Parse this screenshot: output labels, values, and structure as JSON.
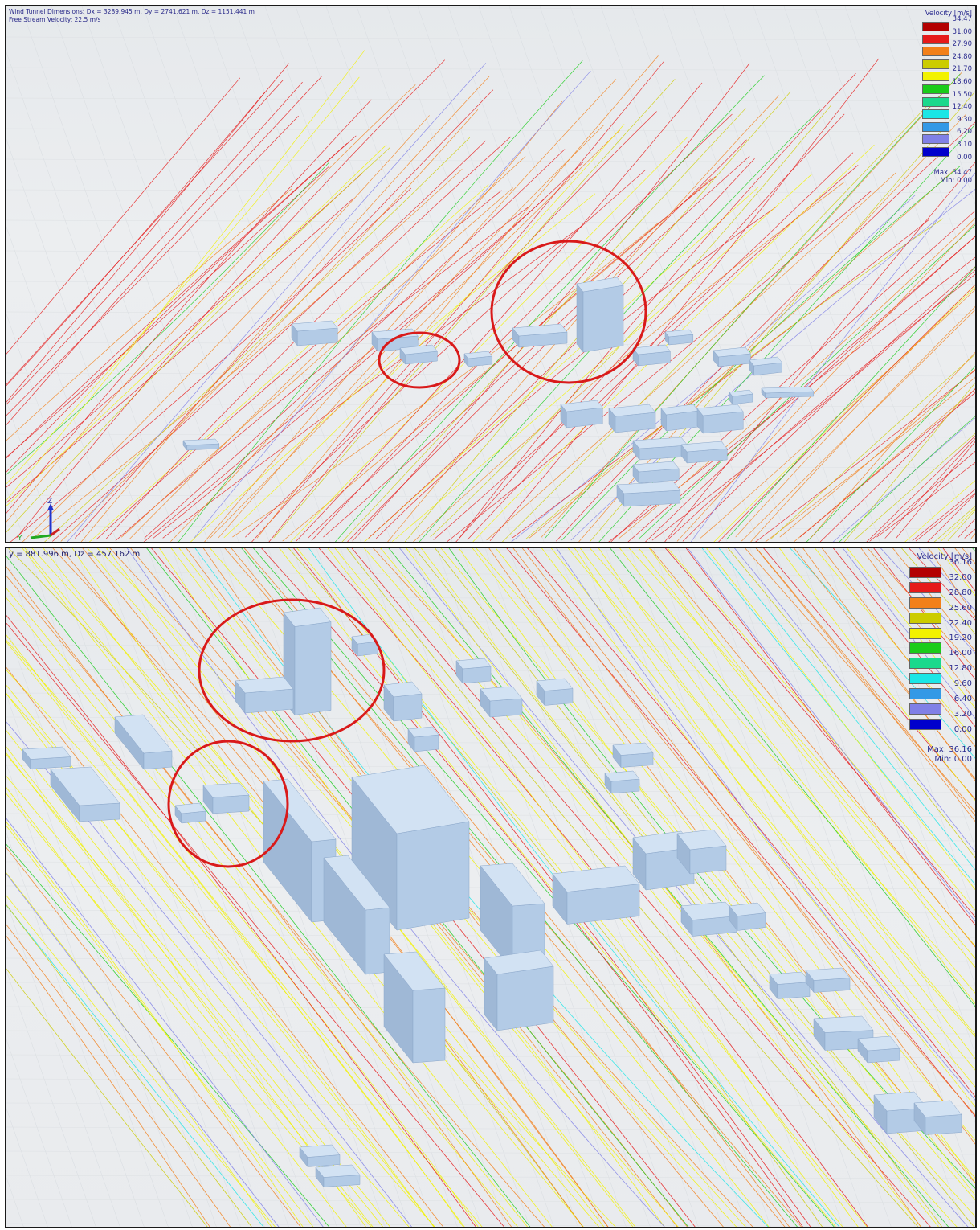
{
  "top_view": {
    "info_line1": "Wind Tunnel Dimensions: Dx = 3289.945 m, Dy = 2741.621 m, Dz = 1151.441 m",
    "info_line2": "Free Stream Velocity: 22.5 m/s",
    "legend": {
      "title": "Velocity [m/s]",
      "ticks": [
        "34.47",
        "31.00",
        "27.90",
        "24.80",
        "21.70",
        "18.60",
        "15.50",
        "12.40",
        "9.30",
        "6.20",
        "3.10",
        "0.00"
      ],
      "max_label": "Max:",
      "max_value": "34.47",
      "min_label": "Min:",
      "min_value": "0.00"
    },
    "axis": {
      "z": "Z",
      "y": "Y",
      "x": "X"
    }
  },
  "bottom_view": {
    "info_line1": "y = 881.996 m, Dz = 457.162 m",
    "legend": {
      "title": "Velocity [m/s]",
      "ticks": [
        "36.16",
        "32.00",
        "28.80",
        "25.60",
        "22.40",
        "19.20",
        "16.00",
        "12.80",
        "9.60",
        "6.40",
        "3.20",
        "0.00"
      ],
      "max_label": "Max:",
      "max_value": "36.16",
      "min_label": "Min:",
      "min_value": "0.00"
    }
  },
  "colors": {
    "scale": [
      "#b30000",
      "#e61a1a",
      "#f2801a",
      "#cccc00",
      "#f2f200",
      "#1acc1a",
      "#1ad98c",
      "#1ae6e6",
      "#3399e6",
      "#8080e6",
      "#0000cc"
    ],
    "building": "#b8d0ea",
    "highlight_circle": "#d91a1a"
  }
}
